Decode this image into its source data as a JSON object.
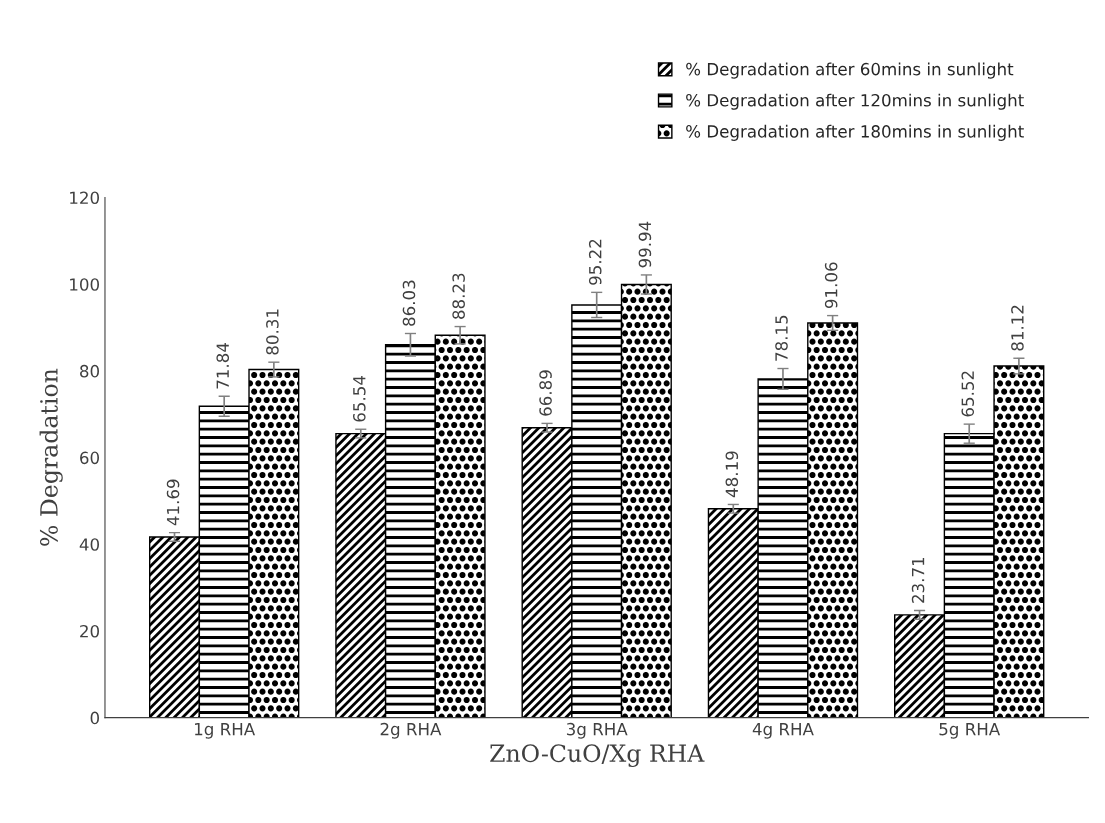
{
  "chart_data": {
    "type": "bar",
    "xlabel": "ZnO-CuO/Xg RHA",
    "ylabel": "% Degradation",
    "categories": [
      "1g RHA",
      "2g RHA",
      "3g RHA",
      "4g RHA",
      "5g RHA"
    ],
    "series": [
      {
        "name": "% Degradation after 60mins in sunlight",
        "color": "#000000",
        "values": [
          41.69,
          65.54,
          66.89,
          48.19,
          23.71
        ],
        "errors": [
          1,
          1,
          1,
          1,
          1
        ]
      },
      {
        "name": "% Degradation after 120mins in sunlight",
        "color": "#000000",
        "values": [
          71.84,
          86.03,
          95.22,
          78.15,
          65.52
        ],
        "errors": [
          2.3,
          2.6,
          2.9,
          2.4,
          2.2
        ]
      },
      {
        "name": "% Degradation after 180mins in sunlight",
        "color": "#000000",
        "values": [
          80.31,
          88.23,
          99.94,
          91.06,
          81.12
        ],
        "errors": [
          1.7,
          2,
          2.2,
          1.7,
          1.8
        ]
      }
    ],
    "ylim": [
      0,
      120
    ],
    "yticks": [
      0,
      20,
      40,
      60,
      80,
      100,
      120
    ],
    "data_labels": true,
    "grid": false,
    "legend": "top right"
  }
}
